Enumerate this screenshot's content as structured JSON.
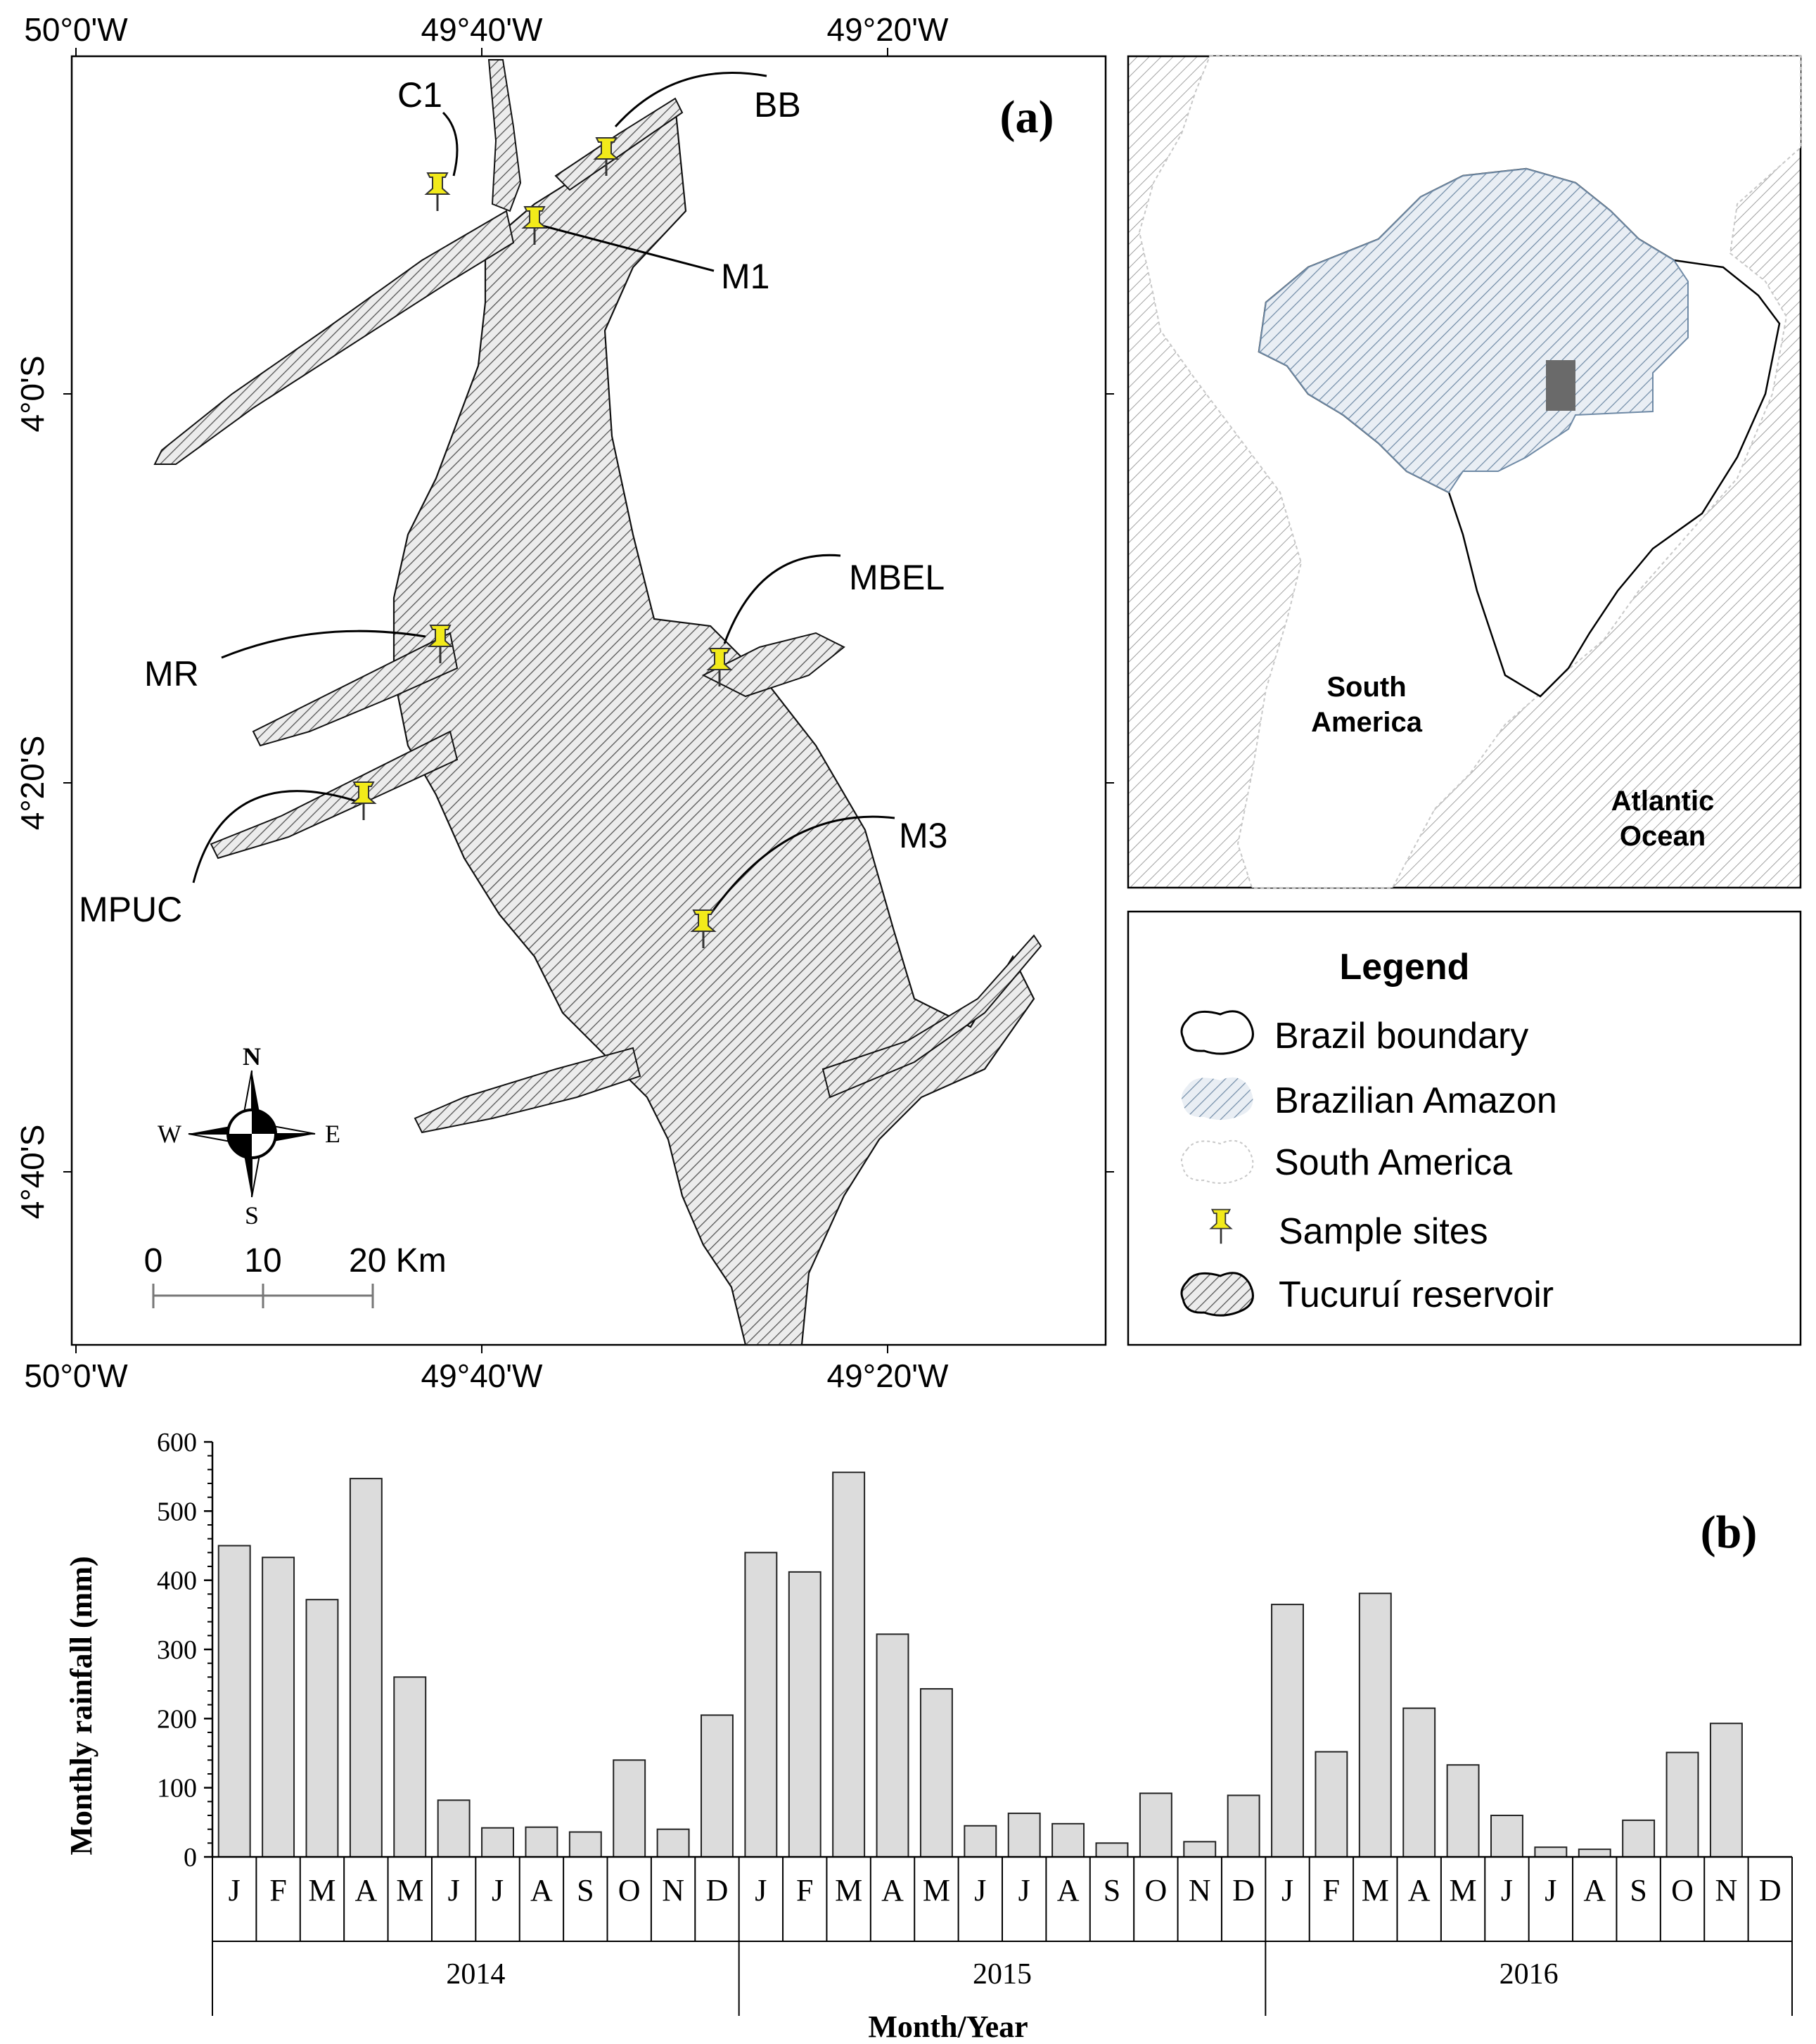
{
  "panel_a": {
    "label": "(a)",
    "top_ticks": [
      "50°0'W",
      "49°40'W",
      "49°20'W"
    ],
    "bottom_ticks": [
      "50°0'W",
      "49°40'W",
      "49°20'W"
    ],
    "left_ticks": [
      "4°0'S",
      "4°20'S",
      "4°40'S"
    ],
    "sites": [
      {
        "name": "C1"
      },
      {
        "name": "BB"
      },
      {
        "name": "M1"
      },
      {
        "name": "MBEL"
      },
      {
        "name": "MR"
      },
      {
        "name": "MPUC"
      },
      {
        "name": "M3"
      }
    ],
    "compass": {
      "n": "N",
      "s": "S",
      "e": "E",
      "w": "W"
    },
    "scale_bar": {
      "labels": [
        "0",
        "10",
        "20 Km"
      ]
    },
    "inset": {
      "south_america_label_1": "South",
      "south_america_label_2": "America",
      "ocean_label_1": "Atlantic",
      "ocean_label_2": "Ocean"
    },
    "legend": {
      "title": "Legend",
      "items": [
        {
          "label": "Brazil boundary",
          "icon": "white-blob-icon"
        },
        {
          "label": "Brazilian Amazon",
          "icon": "blue-hatch-icon"
        },
        {
          "label": "South America",
          "icon": "dotted-blob-icon"
        },
        {
          "label": "Sample sites",
          "icon": "yellow-pin-icon"
        },
        {
          "label": "Tucuruí reservoir",
          "icon": "gray-hatch-icon"
        }
      ]
    },
    "colors": {
      "pin": "#f2ea1a",
      "amazon_hatch": "#6f8aa6",
      "study_area": "#6a6a6a"
    }
  },
  "chart_data": {
    "type": "bar",
    "panel_label": "(b)",
    "ylabel": "Monthly rainfall (mm)",
    "xlabel": "Month/Year",
    "ylim": [
      0,
      600
    ],
    "yticks": [
      0,
      100,
      200,
      300,
      400,
      500,
      600
    ],
    "years": [
      "2014",
      "2015",
      "2016"
    ],
    "months": [
      "J",
      "F",
      "M",
      "A",
      "M",
      "J",
      "J",
      "A",
      "S",
      "O",
      "N",
      "D"
    ],
    "values": [
      450,
      433,
      372,
      547,
      260,
      82,
      42,
      43,
      36,
      140,
      40,
      205,
      440,
      412,
      556,
      322,
      243,
      45,
      63,
      48,
      20,
      92,
      22,
      89,
      365,
      152,
      381,
      215,
      133,
      60,
      14,
      11,
      53,
      151,
      193
    ],
    "bar_color": "#dcdcdc"
  }
}
